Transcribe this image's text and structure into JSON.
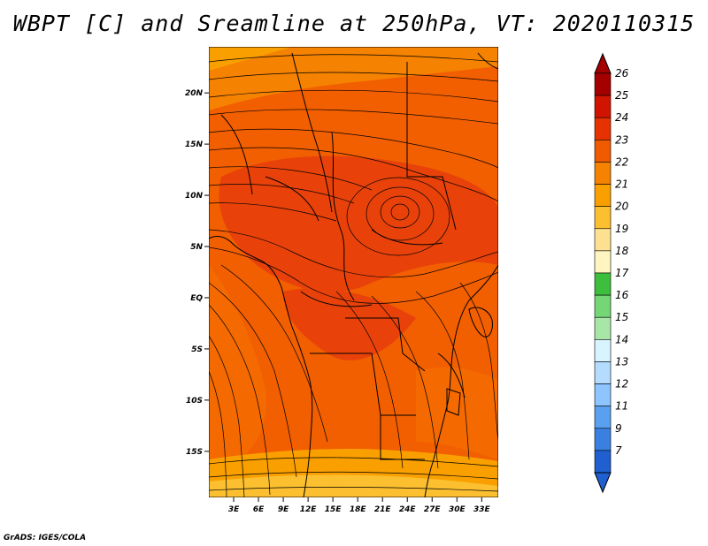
{
  "title": "WBPT [C] and Sreamline at 250hPa, VT: 2020110315",
  "credit": "GrADS: IGES/COLA",
  "map": {
    "lat_ticks": [
      "20N",
      "15N",
      "10N",
      "5N",
      "EQ",
      "5S",
      "10S",
      "15S"
    ],
    "lon_ticks": [
      "3E",
      "6E",
      "9E",
      "12E",
      "15E",
      "18E",
      "21E",
      "24E",
      "27E",
      "30E",
      "33E"
    ],
    "lat_range": [
      -19.5,
      24.5
    ],
    "lon_range": [
      0,
      35
    ]
  },
  "colorbar": {
    "labels": [
      "26",
      "25",
      "24",
      "23",
      "22",
      "21",
      "20",
      "19",
      "18",
      "17",
      "16",
      "15",
      "14",
      "13",
      "12",
      "11",
      "9",
      "7"
    ],
    "colors": [
      "#a50000",
      "#d01400",
      "#e63200",
      "#f05a00",
      "#f58200",
      "#f9a000",
      "#fbbf30",
      "#fde190",
      "#fff5c0",
      "#3dbf3d",
      "#74d674",
      "#a8e6a8",
      "#d8f5ff",
      "#b4dcff",
      "#8ec4ff",
      "#5aa0f0",
      "#3a80e0",
      "#1f5fd0"
    ]
  },
  "icons": {
    "top_arrow": "triangle-up-icon",
    "bottom_arrow": "triangle-down-icon"
  }
}
